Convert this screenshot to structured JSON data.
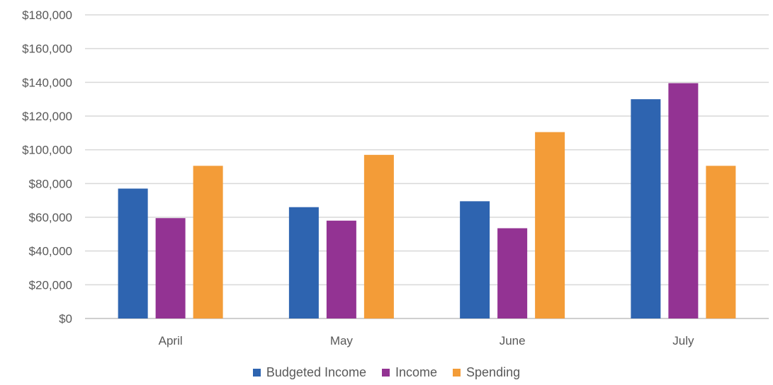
{
  "chart_data": {
    "type": "bar",
    "categories": [
      "April",
      "May",
      "June",
      "July"
    ],
    "series": [
      {
        "name": "Budgeted Income",
        "values": [
          77000,
          66000,
          69500,
          130000
        ],
        "color": "#2E64B0"
      },
      {
        "name": "Income",
        "values": [
          59500,
          58000,
          53500,
          139500
        ],
        "color": "#933393"
      },
      {
        "name": "Spending",
        "values": [
          90500,
          97000,
          110500,
          90500
        ],
        "color": "#F39C38"
      }
    ],
    "ylim": [
      0,
      180000
    ],
    "yticks": [
      0,
      20000,
      40000,
      60000,
      80000,
      100000,
      120000,
      140000,
      160000,
      180000
    ],
    "ytick_labels": [
      "$0",
      "$20,000",
      "$40,000",
      "$60,000",
      "$80,000",
      "$100,000",
      "$120,000",
      "$140,000",
      "$160,000",
      "$180,000"
    ],
    "grid": true,
    "legend_position": "bottom",
    "gridline_color": "#D9D9D9",
    "axis_color": "#BFBFBF"
  }
}
